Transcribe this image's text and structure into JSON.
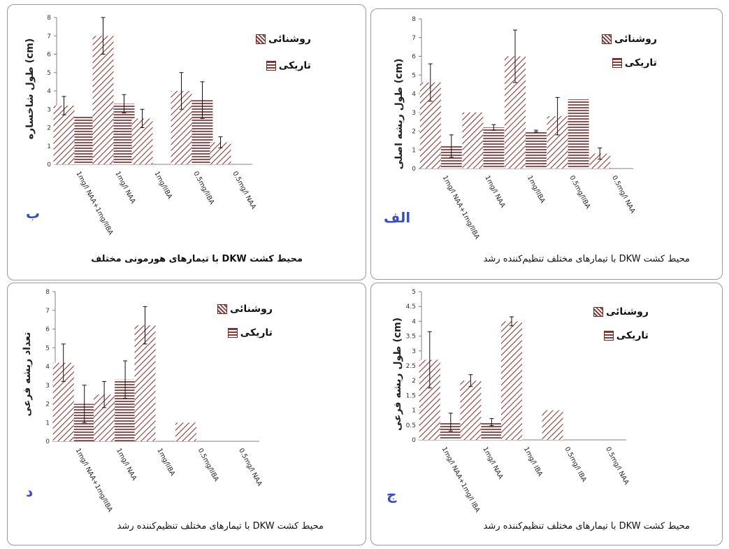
{
  "chart_data": [
    {
      "panel_key": "b",
      "type": "bar",
      "panel_label": "ب",
      "ylabel": "طول شاخساره (cm)",
      "footer": "محیط کشت DKW با تیمارهای هورمونی مختلف",
      "footer_bold": true,
      "categories": [
        "1mg/l NAA+1mg/lIBA",
        "1mg/l NAA",
        "1mg/lIBA",
        "0.5mg/lIBA",
        "0.5mg/l NAA"
      ],
      "ylim": [
        0,
        8
      ],
      "yticks": [
        0,
        1,
        2,
        3,
        4,
        5,
        6,
        7,
        8
      ],
      "series": [
        {
          "name": "روشنائی",
          "values": [
            3.2,
            7.0,
            2.5,
            4.0,
            1.2
          ],
          "err": [
            0.5,
            1.0,
            0.5,
            1.0,
            0.3
          ]
        },
        {
          "name": "تاریکی",
          "values": [
            2.6,
            3.3,
            null,
            3.5,
            null
          ],
          "err": [
            0,
            0.5,
            0,
            1.0,
            0
          ]
        }
      ]
    },
    {
      "panel_key": "alef",
      "type": "bar",
      "panel_label": "الف",
      "ylabel": "طول ریشه اصلی (cm)",
      "footer": "محیط کشت DKW با تیمارهای مختلف تنظیم‌کننده رشد",
      "footer_bold": false,
      "categories": [
        "1mg/l NAA+1mg/lIBA",
        "1mg/l NAA",
        "1mg/lIBA",
        "0.5mg/lIBA",
        "0.5mg/l NAA"
      ],
      "ylim": [
        0,
        8
      ],
      "yticks": [
        0,
        1,
        2,
        3,
        4,
        5,
        6,
        7,
        8
      ],
      "series": [
        {
          "name": "روشنائی",
          "values": [
            4.6,
            3.0,
            6.0,
            2.8,
            0.8
          ],
          "err": [
            1.0,
            0,
            1.4,
            1.0,
            0.3
          ]
        },
        {
          "name": "تاریکی",
          "values": [
            1.2,
            2.2,
            2.0,
            3.7,
            null
          ],
          "err": [
            0.6,
            0.15,
            0.05,
            0,
            0
          ]
        }
      ]
    },
    {
      "panel_key": "d",
      "type": "bar",
      "panel_label": "د",
      "ylabel": "تعداد ریشه فرعی",
      "footer": "محیط کشت DKW با تیمارهای مختلف تنظیم‌کننده رشد",
      "footer_bold": false,
      "categories": [
        "1mg/l NAA+1mg/lIBA",
        "1mg/l NAA",
        "1mg/lIBA",
        "0.5mg/lIBA",
        "0.5mg/l NAA"
      ],
      "ylim": [
        0,
        8
      ],
      "yticks": [
        0,
        1,
        2,
        3,
        4,
        5,
        6,
        7,
        8
      ],
      "series": [
        {
          "name": "روشنائی",
          "values": [
            4.2,
            2.5,
            6.2,
            1.0,
            null
          ],
          "err": [
            1.0,
            0.7,
            1.0,
            0,
            0
          ]
        },
        {
          "name": "تاریکی",
          "values": [
            2.0,
            3.3,
            null,
            null,
            null
          ],
          "err": [
            1.0,
            1.0,
            0,
            0,
            0
          ]
        }
      ]
    },
    {
      "panel_key": "j",
      "type": "bar",
      "panel_label": "ج",
      "ylabel": "طول ریشه فرعی (cm)",
      "footer": "محیط کشت DKW با تیمارهای مختلف تنظیم‌کننده رشد",
      "footer_bold": false,
      "categories": [
        "1mg/l NAA+1mg/l IBA",
        "1mg/l NAA",
        "1mg/l IBA",
        "0.5mg/l IBA",
        "0.5mg/l NAA"
      ],
      "ylim": [
        0,
        5
      ],
      "yticks": [
        0,
        0.5,
        1,
        1.5,
        2,
        2.5,
        3,
        3.5,
        4,
        4.5,
        5
      ],
      "series": [
        {
          "name": "روشنائی",
          "values": [
            2.7,
            2.0,
            4.0,
            1.0,
            null
          ],
          "err": [
            0.95,
            0.2,
            0.15,
            0,
            0
          ]
        },
        {
          "name": "تاریکی",
          "values": [
            0.6,
            0.6,
            null,
            null,
            null
          ],
          "err": [
            0.3,
            0.12,
            0,
            0,
            0
          ]
        }
      ]
    }
  ],
  "colors": {
    "light_hatch": "#8b3a3a",
    "dark_hatch": "#8b3a3a",
    "panel_label": "#3a4fc2",
    "axis": "#808080"
  }
}
